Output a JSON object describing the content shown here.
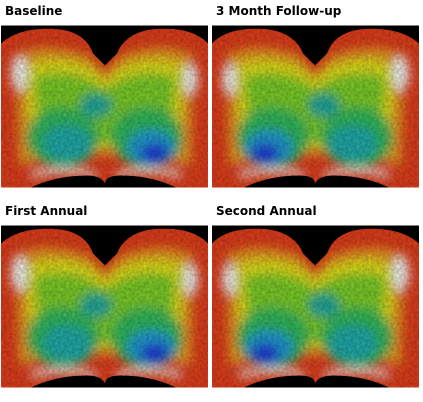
{
  "panels": [
    {
      "label": "Baseline"
    },
    {
      "label": "3 Month Follow-up"
    },
    {
      "label": "First Annual"
    },
    {
      "label": "Second Annual"
    }
  ]
}
